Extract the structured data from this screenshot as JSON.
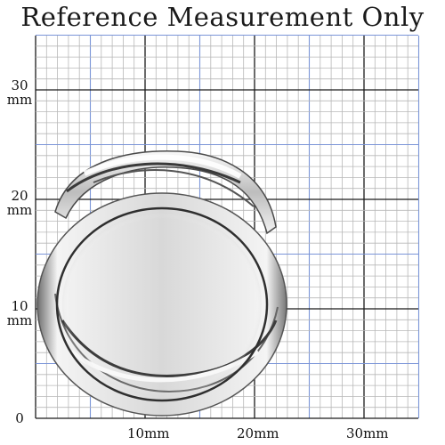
{
  "title": "Reference Measurement Only",
  "y_axis": {
    "labels": [
      {
        "value": "30",
        "unit": "mm"
      },
      {
        "value": "20",
        "unit": "mm"
      },
      {
        "value": "10",
        "unit": "mm"
      },
      {
        "value": "0",
        "unit": ""
      }
    ]
  },
  "x_axis": {
    "labels": [
      "10mm",
      "20mm",
      "30mm"
    ]
  },
  "colors": {
    "minor_grid": "#b8b8b8",
    "major_blue": "#7b95d8",
    "major_black": "#1a1a1a",
    "ring_metal": "#d8d8d8"
  }
}
